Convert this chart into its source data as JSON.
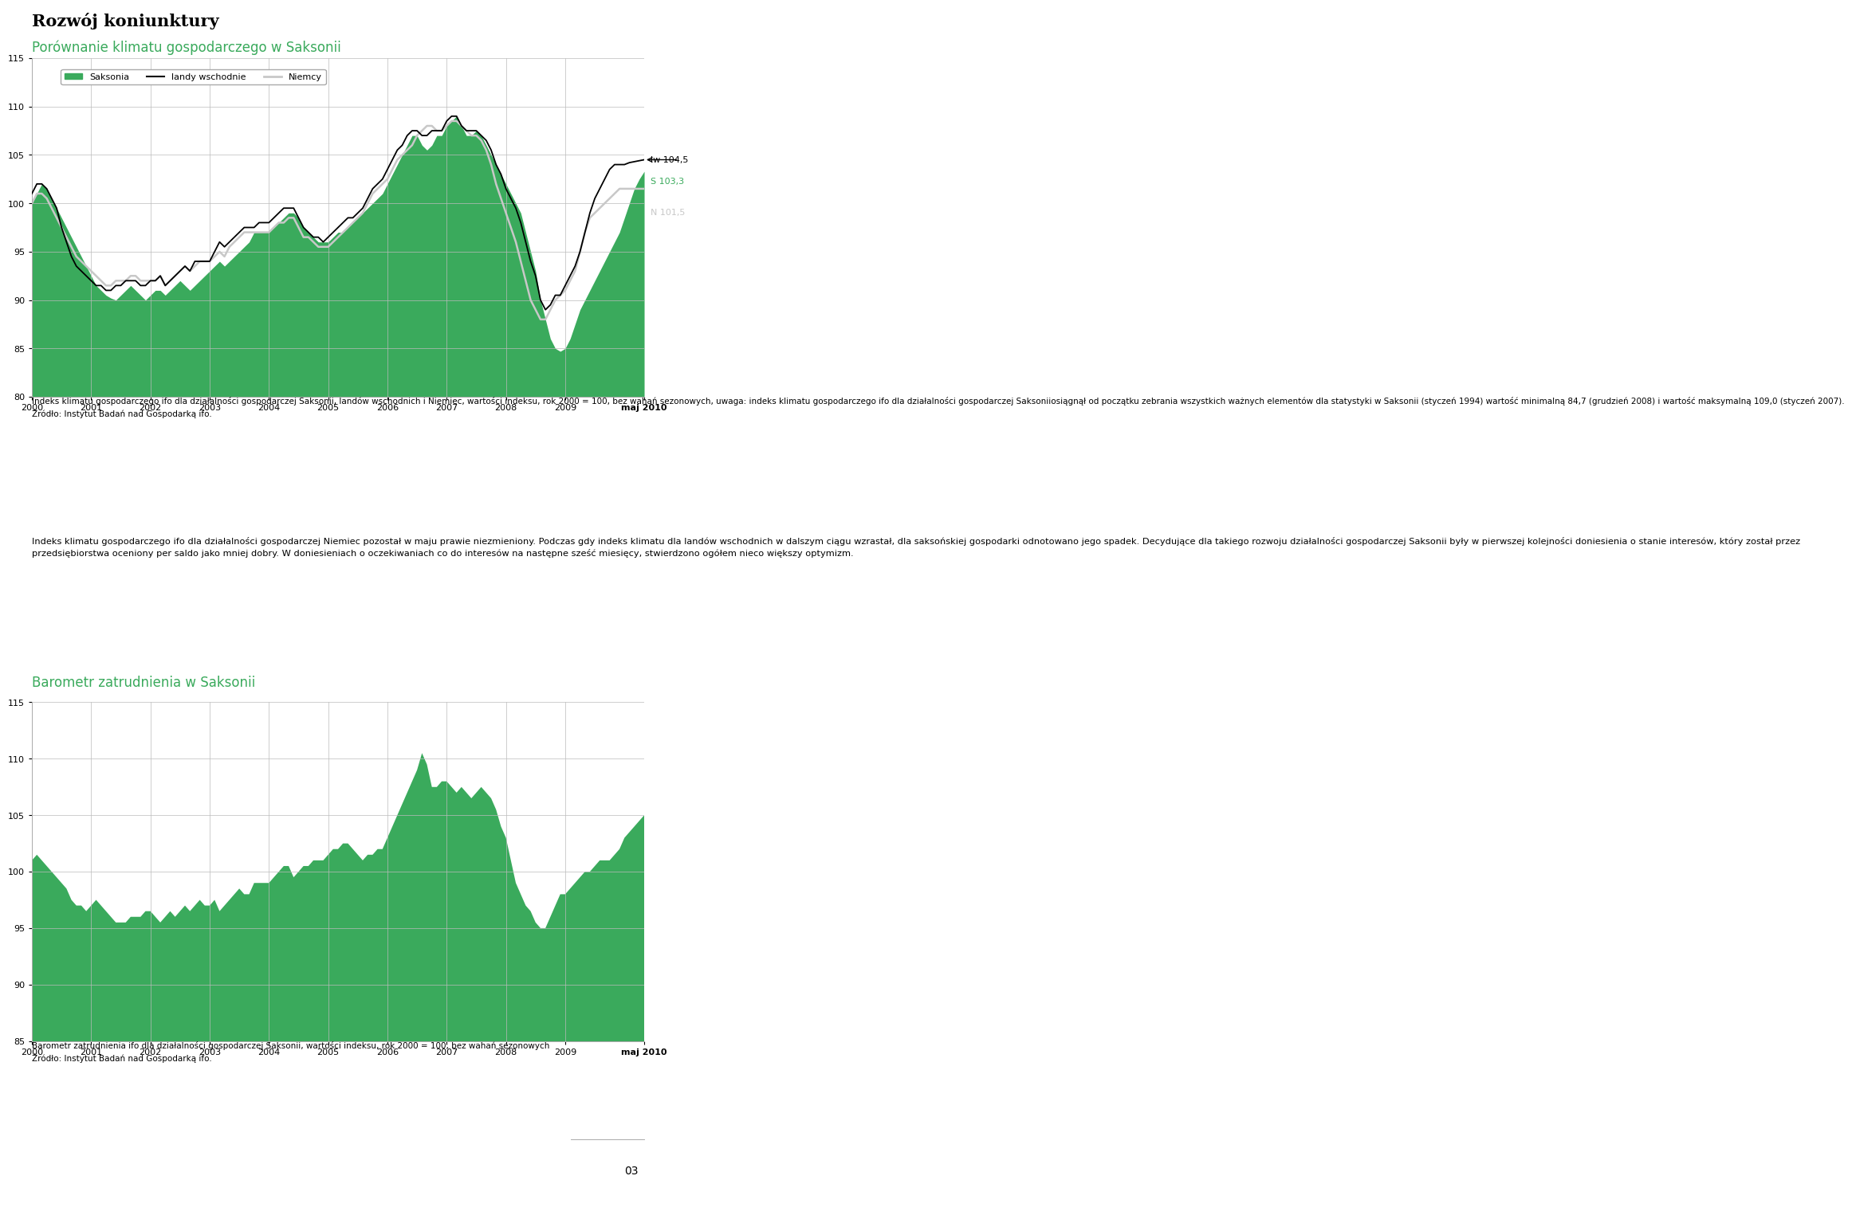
{
  "page_title": "Rozwój koniunktury",
  "chart1_title": "Porównanie klimatu gospodarczego w Saksonii",
  "chart2_title": "Barometr zatrudnienia w Saksonii",
  "legend_labels": [
    "Saksonia",
    "landy wschodnie",
    "Niemcy"
  ],
  "x_tick_labels": [
    "2000",
    "2001",
    "2002",
    "2003",
    "2004",
    "2005",
    "2006",
    "2007",
    "2008",
    "2009",
    "maj 2010"
  ],
  "ylim1": [
    80,
    115
  ],
  "ylim2": [
    85,
    115
  ],
  "yticks1": [
    80,
    85,
    90,
    95,
    100,
    105,
    110,
    115
  ],
  "yticks2": [
    85,
    90,
    95,
    100,
    105,
    110,
    115
  ],
  "green_color": "#3aaa5c",
  "black_color": "#000000",
  "gray_color": "#c8c8c8",
  "title_color": "#3aaa5c",
  "page_title_color": "#000000",
  "annotation_lw": "lw 104,5",
  "annotation_s": "S 103,3",
  "annotation_n": "N 101,5",
  "text1": "Indeks klimatu gospodarczego ifo dla działalności gospodarczej Saksonii, landów wschodnich i Niemiec, wartości indeksu, rok 2000 = 100, bez wahań sezonowych, uwaga: indeks klimatu gospodarczego ifo dla działalności gospodarczej Saksoniiosiągnął od początku zebrania wszystkich ważnych elementów dla statystyki w Saksonii (styczeń 1994) wartość minimalną 84,7 (grudzień 2008) i wartość maksymalną 109,0 (styczeń 2007).\nŹródło: Instytut Badań nad Gospodarką ifo.",
  "text2": "Indeks klimatu gospodarczego ifo dla działalności gospodarczej Niemiec pozostał w maju prawie niezmieniony. Podczas gdy indeks klimatu dla landów wschodnich w dalszym ciągu wzrastał, dla saksońskiej gospodarki odnotowano jego spadek. Decydujące dla takiego rozwoju działalności gospodarczej Saksonii były w pierwszej kolejności doniesienia o stanie interesów, który został przez przedsiębiorstwa oceniony per saldo jako mniej dobry. W doniesieniach o oczekiwaniach co do interesów na następne sześć miesięcy, stwierdzono ogółem nieco większy optymizm.",
  "text3": "Barometr zatrudnienia ifo dla działalności gospodarczej Saksonii, wartości indeksu, rok 2000 = 100, bez wahań sezonowych\nŹródło: Instytut Badań nad Gospodarką ifo.",
  "page_num": "03",
  "background_color": "#ffffff"
}
